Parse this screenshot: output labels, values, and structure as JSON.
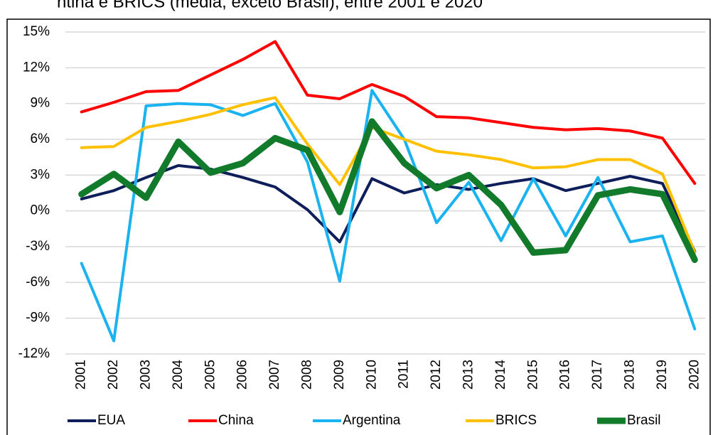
{
  "chart_data": {
    "type": "line",
    "title": "ntina e BRICS (média, exceto Brasil), entre 2001 e 2020",
    "categories": [
      "2001",
      "2002",
      "2003",
      "2004",
      "2005",
      "2006",
      "2007",
      "2008",
      "2009",
      "2010",
      "2011",
      "2012",
      "2013",
      "2014",
      "2015",
      "2016",
      "2017",
      "2018",
      "2019",
      "2020"
    ],
    "series": [
      {
        "name": "EUA",
        "color": "#0d1e5a",
        "values": [
          1.0,
          1.7,
          2.8,
          3.8,
          3.5,
          2.8,
          2.0,
          0.1,
          -2.6,
          2.7,
          1.5,
          2.2,
          1.8,
          2.3,
          2.7,
          1.7,
          2.3,
          2.9,
          2.3,
          -3.4
        ]
      },
      {
        "name": "China",
        "color": "#ff0000",
        "values": [
          8.3,
          9.1,
          10.0,
          10.1,
          11.4,
          12.7,
          14.2,
          9.7,
          9.4,
          10.6,
          9.6,
          7.9,
          7.8,
          7.4,
          7.0,
          6.8,
          6.9,
          6.7,
          6.1,
          2.3
        ]
      },
      {
        "name": "Argentina",
        "color": "#1ab3f0",
        "values": [
          -4.4,
          -10.9,
          8.8,
          9.0,
          8.9,
          8.0,
          9.0,
          4.1,
          -5.9,
          10.1,
          6.0,
          -1.0,
          2.4,
          -2.5,
          2.7,
          -2.1,
          2.8,
          -2.6,
          -2.1,
          -9.9
        ]
      },
      {
        "name": "BRICS",
        "color": "#ffc000",
        "values": [
          5.3,
          5.4,
          7.0,
          7.5,
          8.1,
          8.9,
          9.5,
          5.6,
          2.2,
          7.0,
          6.0,
          5.0,
          4.7,
          4.3,
          3.6,
          3.7,
          4.3,
          4.3,
          3.1,
          -3.5
        ]
      },
      {
        "name": "Brasil",
        "color": "#127a2b",
        "values": [
          1.4,
          3.1,
          1.1,
          5.8,
          3.2,
          4.0,
          6.1,
          5.1,
          -0.1,
          7.5,
          4.0,
          1.9,
          3.0,
          0.5,
          -3.5,
          -3.3,
          1.3,
          1.8,
          1.4,
          -4.1
        ]
      }
    ],
    "ylim": [
      -12,
      15
    ],
    "yticks": [
      {
        "value": -12,
        "label": "-12%"
      },
      {
        "value": -9,
        "label": "-9%"
      },
      {
        "value": -6,
        "label": "-6%"
      },
      {
        "value": -3,
        "label": "-3%"
      },
      {
        "value": 0,
        "label": "0%"
      },
      {
        "value": 3,
        "label": "3%"
      },
      {
        "value": 6,
        "label": "6%"
      },
      {
        "value": 9,
        "label": "9%"
      },
      {
        "value": 12,
        "label": "12%"
      },
      {
        "value": 15,
        "label": "15%"
      }
    ],
    "grid": true,
    "legend": "bottom"
  }
}
